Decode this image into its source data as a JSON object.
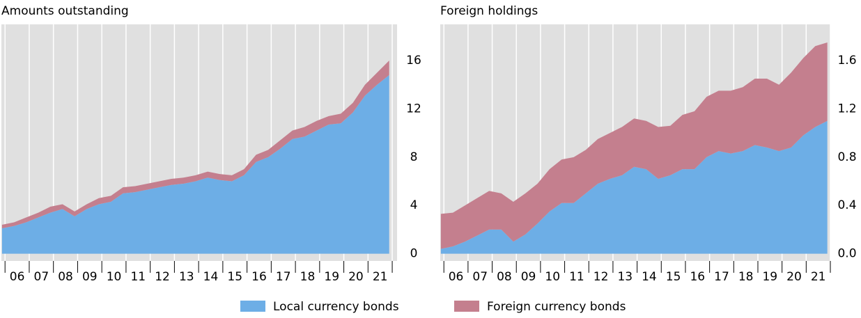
{
  "chart_data": [
    {
      "type": "stacked-area",
      "title": "Amounts outstanding",
      "x": [
        2005.875,
        2006.375,
        2006.875,
        2007.375,
        2007.875,
        2008.375,
        2008.875,
        2009.375,
        2009.875,
        2010.375,
        2010.875,
        2011.375,
        2011.875,
        2012.375,
        2012.875,
        2013.375,
        2013.875,
        2014.375,
        2014.875,
        2015.375,
        2015.875,
        2016.375,
        2016.875,
        2017.375,
        2017.875,
        2018.375,
        2018.875,
        2019.375,
        2019.875,
        2020.375,
        2020.875,
        2021.375,
        2021.875
      ],
      "series": [
        {
          "name": "Local currency bonds",
          "color": "#6daee6",
          "values": [
            2.1,
            2.3,
            2.6,
            3.0,
            3.4,
            3.7,
            3.1,
            3.7,
            4.1,
            4.3,
            5.0,
            5.1,
            5.3,
            5.5,
            5.7,
            5.8,
            6.0,
            6.3,
            6.1,
            6.0,
            6.5,
            7.6,
            8.0,
            8.7,
            9.5,
            9.7,
            10.2,
            10.7,
            10.8,
            11.7,
            13.1,
            14.0,
            14.8
          ]
        },
        {
          "name": "Foreign currency bonds",
          "color": "#c47f8e",
          "values": [
            0.3,
            0.3,
            0.4,
            0.4,
            0.5,
            0.4,
            0.4,
            0.4,
            0.5,
            0.5,
            0.5,
            0.5,
            0.5,
            0.5,
            0.5,
            0.5,
            0.5,
            0.5,
            0.5,
            0.5,
            0.5,
            0.6,
            0.6,
            0.7,
            0.7,
            0.8,
            0.8,
            0.7,
            0.8,
            0.8,
            0.9,
            1.0,
            1.2
          ]
        }
      ],
      "xlim": [
        2005.85,
        2022.2
      ],
      "ylim": [
        -0.6,
        19
      ],
      "yticks": [
        0,
        4,
        8,
        12,
        16
      ],
      "xgrid": [
        2006,
        2007,
        2008,
        2009,
        2010,
        2011,
        2012,
        2013,
        2014,
        2015,
        2016,
        2017,
        2018,
        2019,
        2020,
        2021,
        2022
      ],
      "xticks": [
        {
          "value": 2006.5,
          "label": "06"
        },
        {
          "value": 2007.5,
          "label": "07"
        },
        {
          "value": 2008.5,
          "label": "08"
        },
        {
          "value": 2009.5,
          "label": "09"
        },
        {
          "value": 2010.5,
          "label": "10"
        },
        {
          "value": 2011.5,
          "label": "11"
        },
        {
          "value": 2012.5,
          "label": "12"
        },
        {
          "value": 2013.5,
          "label": "13"
        },
        {
          "value": 2014.5,
          "label": "14"
        },
        {
          "value": 2015.5,
          "label": "15"
        },
        {
          "value": 2016.5,
          "label": "16"
        },
        {
          "value": 2017.5,
          "label": "17"
        },
        {
          "value": 2018.5,
          "label": "18"
        },
        {
          "value": 2019.5,
          "label": "19"
        },
        {
          "value": 2020.5,
          "label": "20"
        },
        {
          "value": 2021.5,
          "label": "21"
        }
      ]
    },
    {
      "type": "stacked-area",
      "title": "Foreign holdings",
      "x": [
        2005.875,
        2006.375,
        2006.875,
        2007.375,
        2007.875,
        2008.375,
        2008.875,
        2009.375,
        2009.875,
        2010.375,
        2010.875,
        2011.375,
        2011.875,
        2012.375,
        2012.875,
        2013.375,
        2013.875,
        2014.375,
        2014.875,
        2015.375,
        2015.875,
        2016.375,
        2016.875,
        2017.375,
        2017.875,
        2018.375,
        2018.875,
        2019.375,
        2019.875,
        2020.375,
        2020.875,
        2021.375,
        2021.875
      ],
      "series": [
        {
          "color": "#6daee6",
          "values": [
            0.04,
            0.06,
            0.1,
            0.15,
            0.2,
            0.2,
            0.1,
            0.16,
            0.25,
            0.35,
            0.42,
            0.42,
            0.5,
            0.58,
            0.62,
            0.65,
            0.72,
            0.7,
            0.62,
            0.65,
            0.7,
            0.7,
            0.8,
            0.85,
            0.83,
            0.85,
            0.9,
            0.88,
            0.85,
            0.88,
            0.98,
            1.05,
            1.1
          ]
        },
        {
          "color": "#c47f8e",
          "values": [
            0.29,
            0.28,
            0.3,
            0.31,
            0.32,
            0.3,
            0.33,
            0.34,
            0.33,
            0.35,
            0.36,
            0.38,
            0.36,
            0.37,
            0.38,
            0.4,
            0.4,
            0.4,
            0.43,
            0.41,
            0.45,
            0.48,
            0.5,
            0.5,
            0.52,
            0.53,
            0.55,
            0.57,
            0.55,
            0.62,
            0.64,
            0.67,
            0.65
          ]
        }
      ],
      "xlim": [
        2005.85,
        2022.0
      ],
      "ylim": [
        -0.06,
        1.9
      ],
      "yticks": [
        {
          "value": 0,
          "label": "0.0"
        },
        0.4,
        0.8,
        1.2,
        1.6
      ],
      "xgrid": [
        2006,
        2007,
        2008,
        2009,
        2010,
        2011,
        2012,
        2013,
        2014,
        2015,
        2016,
        2017,
        2018,
        2019,
        2020,
        2021,
        2022
      ],
      "xticks": [
        {
          "value": 2006.5,
          "label": "06"
        },
        {
          "value": 2007.5,
          "label": "07"
        },
        {
          "value": 2008.5,
          "label": "08"
        },
        {
          "value": 2009.5,
          "label": "09"
        },
        {
          "value": 2010.5,
          "label": "10"
        },
        {
          "value": 2011.5,
          "label": "11"
        },
        {
          "value": 2012.5,
          "label": "12"
        },
        {
          "value": 2013.5,
          "label": "13"
        },
        {
          "value": 2014.5,
          "label": "14"
        },
        {
          "value": 2015.5,
          "label": "15"
        },
        {
          "value": 2016.5,
          "label": "16"
        },
        {
          "value": 2017.5,
          "label": "17"
        },
        {
          "value": 2018.5,
          "label": "18"
        },
        {
          "value": 2019.5,
          "label": "19"
        },
        {
          "value": 2020.5,
          "label": "20"
        },
        {
          "value": 2021.5,
          "label": "21"
        }
      ]
    }
  ]
}
